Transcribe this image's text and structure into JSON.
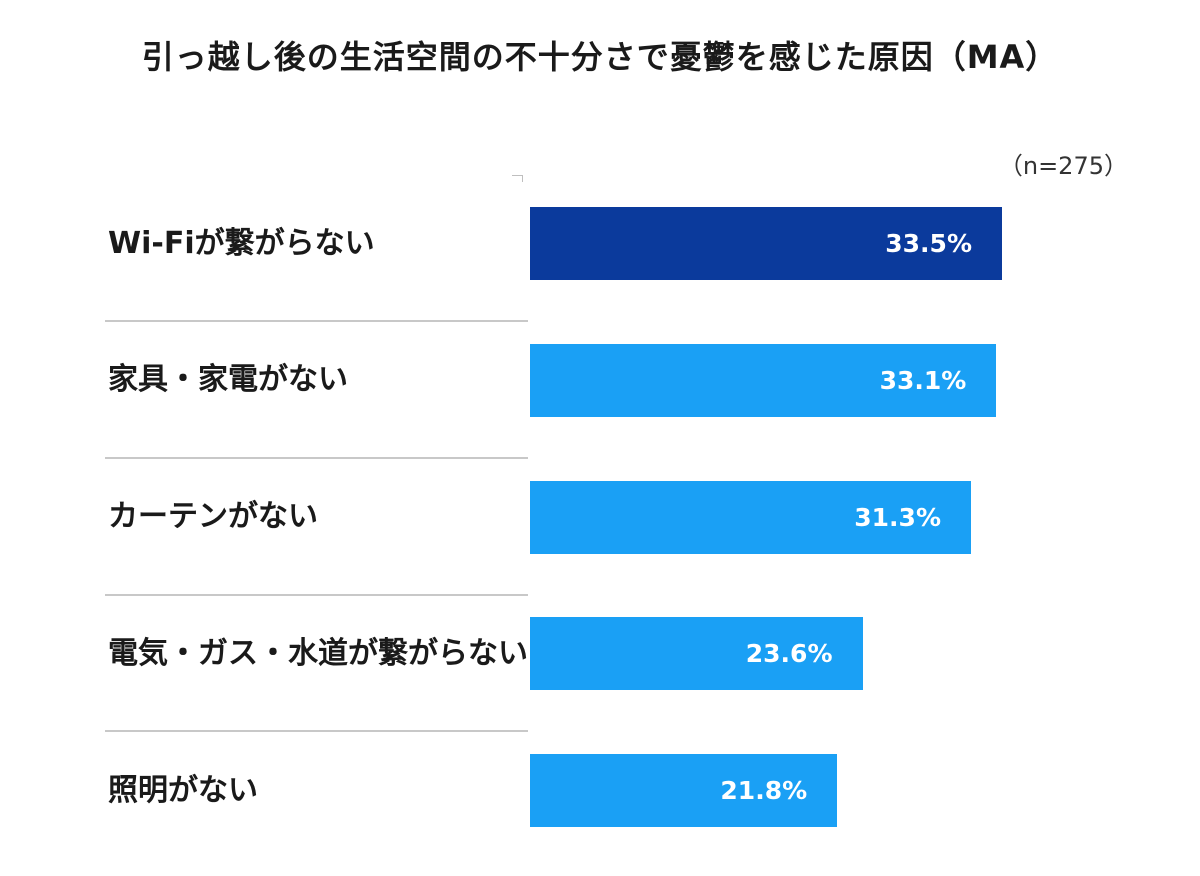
{
  "title": "引っ越し後の生活空間の不十分さで憂鬱を感じた原因（MA）",
  "sample_size": "（n=275）",
  "colors": {
    "highlight_bar": "#0b3a9c",
    "default_bar": "#1aa0f5",
    "value_text": "#ffffff",
    "separator": "#c8c8c8"
  },
  "chart_data": {
    "type": "bar",
    "orientation": "horizontal",
    "title": "引っ越し後の生活空間の不十分さで憂鬱を感じた原因（MA）",
    "xlabel": "",
    "ylabel": "",
    "xlim": [
      0,
      35
    ],
    "grid": false,
    "categories": [
      "Wi-Fiが繋がらない",
      "家具・家電がない",
      "カーテンがない",
      "電気・ガス・水道が繋がらない",
      "照明がない"
    ],
    "values": [
      33.5,
      33.1,
      31.3,
      23.6,
      21.8
    ],
    "value_labels": [
      "33.5%",
      "33.1%",
      "31.3%",
      "23.6%",
      "21.8%"
    ],
    "highlight_index": 0
  }
}
